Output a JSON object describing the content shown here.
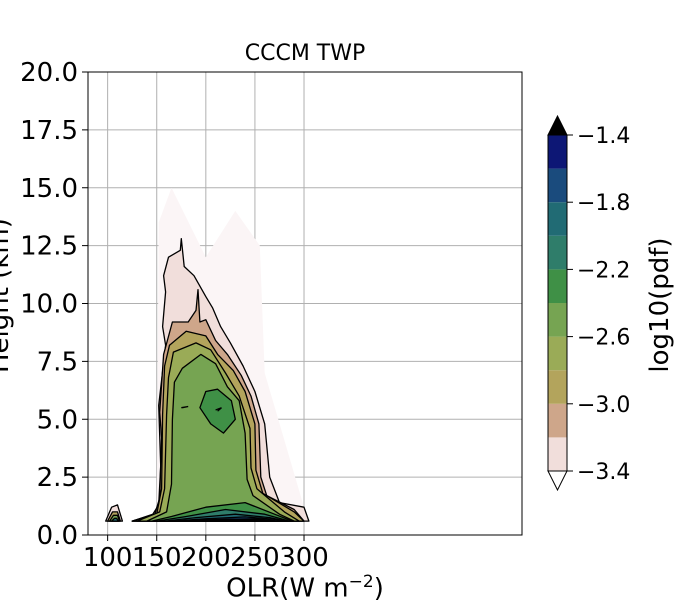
{
  "chart_data": {
    "type": "contourf",
    "title": "CCCM TWP",
    "xlabel": "OLR(W m",
    "xlabel_superscript": "−2",
    "xlabel_suffix": ")",
    "ylabel": "Height (km)",
    "xlim": [
      80,
      522
    ],
    "ylim": [
      0,
      20
    ],
    "xticks": [
      "100",
      "150",
      "200",
      "250",
      "300"
    ],
    "xtick_values": [
      100,
      150,
      200,
      250,
      300
    ],
    "yticks": [
      "0.0",
      "2.5",
      "5.0",
      "7.5",
      "10.0",
      "12.5",
      "15.0",
      "17.5",
      "20.0"
    ],
    "ytick_values": [
      0,
      2.5,
      5,
      7.5,
      10,
      12.5,
      15,
      17.5,
      20
    ],
    "grid": true,
    "colorbar": {
      "label": "log10(pdf)",
      "ticks": [
        "−1.4",
        "−1.8",
        "−2.2",
        "−2.6",
        "−3.0",
        "−3.4"
      ],
      "tick_values": [
        -1.4,
        -1.8,
        -2.2,
        -2.6,
        -3.0,
        -3.4
      ],
      "levels": [
        -3.4,
        -3.2,
        -3.0,
        -2.8,
        -2.6,
        -2.4,
        -2.2,
        -2.0,
        -1.8,
        -1.6,
        -1.4
      ],
      "colors": [
        "#f1dedb",
        "#cea68a",
        "#b3a45c",
        "#9aab57",
        "#76a452",
        "#3f9046",
        "#2f7d6a",
        "#216b74",
        "#1a4b7d",
        "#0d1775"
      ],
      "extend": "both",
      "over_color": "#000000",
      "under_color": "#ffffff"
    },
    "regions": [
      {
        "level": -3.4,
        "color": "#fbf5f6",
        "outline": [
          [
            150,
            0.6
          ],
          [
            152,
            13.5
          ],
          [
            165,
            15
          ],
          [
            200,
            12
          ],
          [
            230,
            14
          ],
          [
            255,
            12.5
          ],
          [
            260,
            7
          ],
          [
            300,
            1.2
          ],
          [
            300,
            0.6
          ]
        ],
        "stroke": false
      },
      {
        "level": -3.2,
        "color": "#f1dedb",
        "outline": [
          [
            125,
            0.6
          ],
          [
            146,
            0.9
          ],
          [
            152,
            1.3
          ],
          [
            154,
            3.0
          ],
          [
            152,
            5.6
          ],
          [
            159,
            8.2
          ],
          [
            156,
            9.0
          ],
          [
            159,
            10.5
          ],
          [
            157,
            11.2
          ],
          [
            162,
            12.0
          ],
          [
            174,
            12.3
          ],
          [
            175,
            12.8
          ],
          [
            178,
            11.6
          ],
          [
            188,
            11.2
          ],
          [
            200,
            10.3
          ],
          [
            207,
            9.8
          ],
          [
            215,
            9.0
          ],
          [
            225,
            8.3
          ],
          [
            238,
            7.3
          ],
          [
            250,
            6.2
          ],
          [
            260,
            4.8
          ],
          [
            265,
            2.5
          ],
          [
            275,
            1.4
          ],
          [
            300,
            1.2
          ],
          [
            305,
            0.6
          ]
        ],
        "stroke": true
      },
      {
        "level": -3.0,
        "color": "#cea68a",
        "outline": [
          [
            125,
            0.6
          ],
          [
            148,
            0.9
          ],
          [
            153,
            1.6
          ],
          [
            155,
            4.2
          ],
          [
            153,
            5.3
          ],
          [
            157,
            7.8
          ],
          [
            166,
            9.2
          ],
          [
            182,
            9.2
          ],
          [
            190,
            9.7
          ],
          [
            192,
            10.6
          ],
          [
            194,
            9.2
          ],
          [
            200,
            9.3
          ],
          [
            210,
            8.4
          ],
          [
            222,
            7.8
          ],
          [
            236,
            6.9
          ],
          [
            246,
            6.0
          ],
          [
            254,
            4.8
          ],
          [
            256,
            2.5
          ],
          [
            262,
            1.7
          ],
          [
            290,
            1.1
          ],
          [
            300,
            0.6
          ]
        ],
        "stroke": true
      },
      {
        "level": -2.8,
        "color": "#b3a45c",
        "outline": [
          [
            125,
            0.6
          ],
          [
            150,
            0.9
          ],
          [
            155,
            2.0
          ],
          [
            156,
            5.2
          ],
          [
            158,
            7.3
          ],
          [
            163,
            8.2
          ],
          [
            180,
            8.8
          ],
          [
            200,
            8.6
          ],
          [
            212,
            7.8
          ],
          [
            228,
            7.1
          ],
          [
            240,
            6.2
          ],
          [
            250,
            4.8
          ],
          [
            251,
            2.8
          ],
          [
            258,
            1.8
          ],
          [
            290,
            1.0
          ],
          [
            300,
            0.6
          ]
        ],
        "stroke": true
      },
      {
        "level": -2.6,
        "color": "#9aab57",
        "outline": [
          [
            130,
            0.6
          ],
          [
            153,
            1.0
          ],
          [
            158,
            2.0
          ],
          [
            160,
            5.2
          ],
          [
            162,
            6.8
          ],
          [
            167,
            7.9
          ],
          [
            190,
            8.3
          ],
          [
            205,
            8.0
          ],
          [
            220,
            7.0
          ],
          [
            234,
            6.0
          ],
          [
            245,
            4.6
          ],
          [
            246,
            2.9
          ],
          [
            252,
            2.0
          ],
          [
            280,
            1.0
          ],
          [
            295,
            0.6
          ]
        ],
        "stroke": true
      },
      {
        "level": -2.4,
        "color": "#76a452",
        "outline": [
          [
            140,
            0.6
          ],
          [
            160,
            1.0
          ],
          [
            165,
            2.2
          ],
          [
            166,
            5.0
          ],
          [
            168,
            6.6
          ],
          [
            176,
            7.2
          ],
          [
            195,
            7.8
          ],
          [
            210,
            7.4
          ],
          [
            222,
            6.4
          ],
          [
            234,
            5.8
          ],
          [
            240,
            4.4
          ],
          [
            242,
            2.4
          ],
          [
            248,
            1.7
          ],
          [
            275,
            0.9
          ],
          [
            290,
            0.6
          ]
        ],
        "stroke": true
      },
      {
        "level": -2.2,
        "color": "#3f9046",
        "outline": [
          [
            194,
            5.5
          ],
          [
            200,
            6.2
          ],
          [
            212,
            6.3
          ],
          [
            226,
            5.8
          ],
          [
            230,
            5.0
          ],
          [
            218,
            4.4
          ],
          [
            205,
            4.8
          ]
        ],
        "stroke": true
      },
      {
        "level": -2.2,
        "color": "#3f9046",
        "outline": [
          [
            145,
            0.6
          ],
          [
            165,
            0.8
          ],
          [
            200,
            1.2
          ],
          [
            240,
            1.4
          ],
          [
            270,
            0.9
          ],
          [
            288,
            0.6
          ]
        ],
        "stroke": true
      },
      {
        "level": -2.0,
        "color": "#2f7d6a",
        "outline": [
          [
            150,
            0.6
          ],
          [
            180,
            0.8
          ],
          [
            220,
            1.1
          ],
          [
            260,
            0.9
          ],
          [
            285,
            0.6
          ]
        ],
        "stroke": true
      },
      {
        "level": -1.8,
        "color": "#216b74",
        "outline": [
          [
            158,
            0.6
          ],
          [
            190,
            0.75
          ],
          [
            230,
            0.9
          ],
          [
            265,
            0.75
          ],
          [
            282,
            0.6
          ]
        ],
        "stroke": true
      },
      {
        "level": -1.6,
        "color": "#1a4b7d",
        "outline": [
          [
            165,
            0.6
          ],
          [
            200,
            0.7
          ],
          [
            240,
            0.78
          ],
          [
            270,
            0.68
          ],
          [
            280,
            0.6
          ]
        ],
        "stroke": true
      },
      {
        "level": -1.4,
        "color": "#0d1775",
        "outline": [
          [
            175,
            0.6
          ],
          [
            210,
            0.66
          ],
          [
            250,
            0.7
          ],
          [
            275,
            0.6
          ]
        ],
        "stroke": true
      },
      {
        "level": -3.2,
        "color": "#f1dedb",
        "outline": [
          [
            98,
            0.6
          ],
          [
            104,
            1.2
          ],
          [
            110,
            1.3
          ],
          [
            115,
            0.6
          ]
        ],
        "stroke": true
      },
      {
        "level": -2.8,
        "color": "#b3a45c",
        "outline": [
          [
            100,
            0.6
          ],
          [
            105,
            1.0
          ],
          [
            110,
            1.0
          ],
          [
            113,
            0.6
          ]
        ],
        "stroke": true
      },
      {
        "level": -2.4,
        "color": "#76a452",
        "outline": [
          [
            102,
            0.6
          ],
          [
            106,
            0.85
          ],
          [
            110,
            0.85
          ],
          [
            112,
            0.6
          ]
        ],
        "stroke": true
      },
      {
        "level": -1.8,
        "color": "#216b74",
        "outline": [
          [
            104,
            0.6
          ],
          [
            107,
            0.72
          ],
          [
            109,
            0.72
          ],
          [
            111,
            0.6
          ]
        ],
        "stroke": true
      }
    ],
    "extra_lines": [
      [
        [
          175,
          5.5
        ],
        [
          182,
          5.55
        ],
        [
          176,
          5.5
        ]
      ],
      [
        [
          210,
          5.4
        ],
        [
          216,
          5.5
        ],
        [
          212,
          5.35
        ]
      ],
      [
        [
          175,
          0.62
        ],
        [
          200,
          0.64
        ],
        [
          240,
          0.66
        ],
        [
          270,
          0.62
        ]
      ],
      [
        [
          185,
          0.64
        ],
        [
          230,
          0.68
        ],
        [
          265,
          0.64
        ]
      ]
    ]
  }
}
